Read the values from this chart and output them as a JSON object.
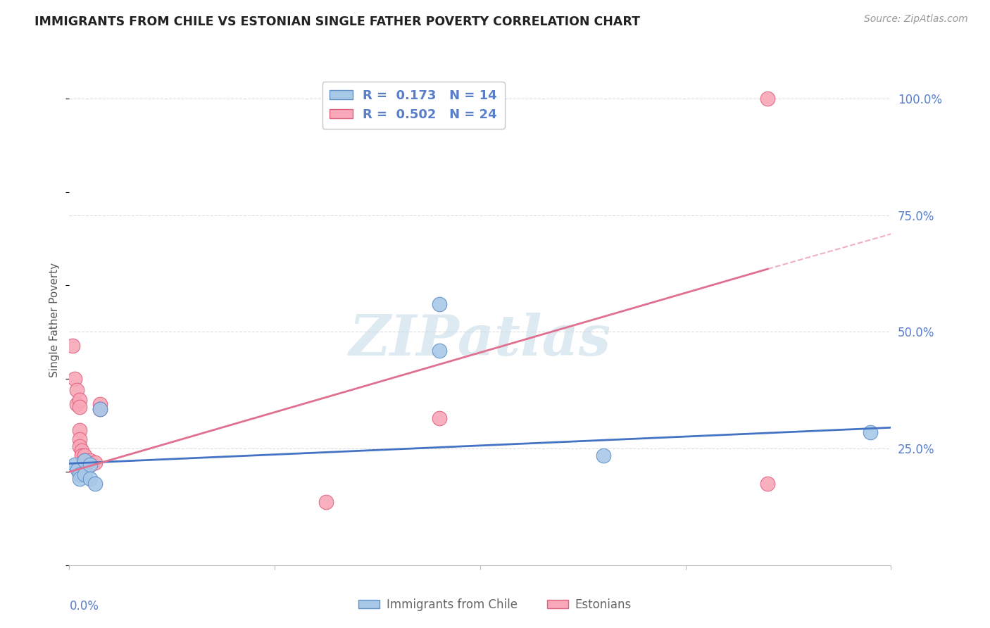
{
  "title": "IMMIGRANTS FROM CHILE VS ESTONIAN SINGLE FATHER POVERTY CORRELATION CHART",
  "source": "Source: ZipAtlas.com",
  "ylabel": "Single Father Poverty",
  "xmin": 0.0,
  "xmax": 0.08,
  "ymin": 0.0,
  "ymax": 1.05,
  "yticks": [
    0.25,
    0.5,
    0.75,
    1.0
  ],
  "ytick_labels": [
    "25.0%",
    "50.0%",
    "75.0%",
    "100.0%"
  ],
  "xticks": [
    0.0,
    0.02,
    0.04,
    0.06,
    0.08
  ],
  "chile_points": [
    [
      0.0005,
      0.215
    ],
    [
      0.0008,
      0.205
    ],
    [
      0.001,
      0.195
    ],
    [
      0.001,
      0.185
    ],
    [
      0.0015,
      0.225
    ],
    [
      0.0015,
      0.195
    ],
    [
      0.002,
      0.215
    ],
    [
      0.002,
      0.185
    ],
    [
      0.0025,
      0.175
    ],
    [
      0.003,
      0.335
    ],
    [
      0.036,
      0.46
    ],
    [
      0.036,
      0.56
    ],
    [
      0.052,
      0.235
    ],
    [
      0.078,
      0.285
    ]
  ],
  "estonian_points": [
    [
      0.0003,
      0.47
    ],
    [
      0.0005,
      0.4
    ],
    [
      0.0007,
      0.375
    ],
    [
      0.0007,
      0.345
    ],
    [
      0.001,
      0.355
    ],
    [
      0.001,
      0.34
    ],
    [
      0.001,
      0.29
    ],
    [
      0.001,
      0.27
    ],
    [
      0.001,
      0.255
    ],
    [
      0.0012,
      0.245
    ],
    [
      0.0012,
      0.235
    ],
    [
      0.0015,
      0.235
    ],
    [
      0.0015,
      0.225
    ],
    [
      0.002,
      0.225
    ],
    [
      0.002,
      0.215
    ],
    [
      0.002,
      0.215
    ],
    [
      0.0025,
      0.22
    ],
    [
      0.003,
      0.345
    ],
    [
      0.003,
      0.335
    ],
    [
      0.025,
      0.135
    ],
    [
      0.036,
      0.315
    ],
    [
      0.068,
      0.175
    ],
    [
      0.068,
      1.0
    ]
  ],
  "chile_line": {
    "x0": 0.0,
    "y0": 0.218,
    "x1": 0.08,
    "y1": 0.295
  },
  "estonian_line_solid": {
    "x0": 0.0,
    "y0": 0.2,
    "x1": 0.068,
    "y1": 0.635
  },
  "estonian_line_dashed": {
    "x0": 0.068,
    "y0": 0.635,
    "x1": 0.08,
    "y1": 0.71
  },
  "chile_color": "#a8c8e8",
  "chile_edge_color": "#6090c8",
  "estonian_color": "#f8a8b8",
  "estonian_edge_color": "#e06080",
  "chile_line_color": "#4472c4",
  "estonian_line_color": "#e07090",
  "watermark_text": "ZIPatlas",
  "watermark_color": "#c8dce8",
  "background_color": "#ffffff",
  "grid_color": "#dddddd",
  "title_color": "#222222",
  "source_color": "#999999",
  "axis_label_color": "#555555",
  "tick_label_color": "#5a7fc8",
  "bottom_label_color": "#666666"
}
